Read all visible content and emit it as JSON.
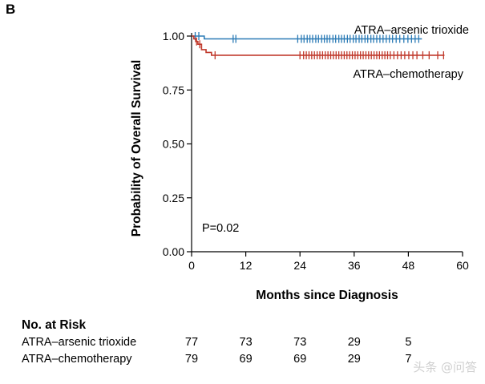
{
  "panel_label": "B",
  "watermark": "头条 @问答",
  "chart_data": {
    "type": "line",
    "subtype": "kaplan-meier",
    "ylabel": "Probability of Overall Survival",
    "xlabel": "Months since Diagnosis",
    "xlim": [
      0,
      60
    ],
    "ylim": [
      0,
      1
    ],
    "xticks": [
      "0",
      "12",
      "24",
      "36",
      "48",
      "60"
    ],
    "yticks": [
      "0.00",
      "0.25",
      "0.50",
      "0.75",
      "1.00"
    ],
    "xtick_values": [
      0,
      12,
      24,
      36,
      48,
      60
    ],
    "ytick_values": [
      0,
      0.25,
      0.5,
      0.75,
      1.0
    ],
    "annotation": "P=0.02",
    "series": [
      {
        "name": "ATRA–arsenic trioxide",
        "color": "#2b7bb6",
        "steps": [
          [
            0,
            1.0
          ],
          [
            2.8,
            0.987
          ],
          [
            51,
            0.987
          ]
        ],
        "censor_marks": [
          0.8,
          1.6,
          9.2,
          9.8,
          23.5,
          24.3,
          24.9,
          25.6,
          26.2,
          26.8,
          27.5,
          28.1,
          28.8,
          29.4,
          30.0,
          30.6,
          31.3,
          31.9,
          32.6,
          33.2,
          33.8,
          34.5,
          35.1,
          35.8,
          36.4,
          37.1,
          37.7,
          38.4,
          39.0,
          39.7,
          40.3,
          41.0,
          41.7,
          42.4,
          43.1,
          43.8,
          44.5,
          45.3,
          46.1,
          47.0,
          47.9,
          48.7,
          49.5,
          50.3
        ]
      },
      {
        "name": "ATRA–chemotherapy",
        "color": "#c0392b",
        "steps": [
          [
            0,
            1.0
          ],
          [
            0.5,
            0.987
          ],
          [
            0.9,
            0.975
          ],
          [
            1.4,
            0.962
          ],
          [
            2.2,
            0.937
          ],
          [
            3.2,
            0.924
          ],
          [
            4.4,
            0.911
          ],
          [
            56,
            0.911
          ]
        ],
        "censor_marks": [
          1.1,
          1.8,
          5.2,
          24.0,
          24.8,
          25.4,
          26.0,
          26.6,
          27.2,
          27.8,
          28.4,
          29.0,
          29.6,
          30.2,
          30.8,
          31.4,
          32.0,
          32.6,
          33.2,
          33.8,
          34.4,
          35.0,
          35.6,
          36.2,
          36.8,
          37.4,
          38.0,
          38.6,
          39.2,
          39.8,
          40.4,
          41.0,
          41.6,
          42.2,
          42.8,
          43.4,
          44.0,
          44.8,
          45.6,
          46.4,
          47.2,
          48.1,
          49.0,
          49.9,
          51.2,
          52.6,
          54.5,
          55.8
        ]
      }
    ],
    "risk_table": {
      "title": "No. at Risk",
      "months": [
        0,
        12,
        24,
        36,
        48
      ],
      "rows": [
        {
          "label": "ATRA–arsenic trioxide",
          "counts": [
            "77",
            "73",
            "73",
            "29",
            "5"
          ]
        },
        {
          "label": "ATRA–chemotherapy",
          "counts": [
            "79",
            "69",
            "69",
            "29",
            "7"
          ]
        }
      ]
    }
  }
}
